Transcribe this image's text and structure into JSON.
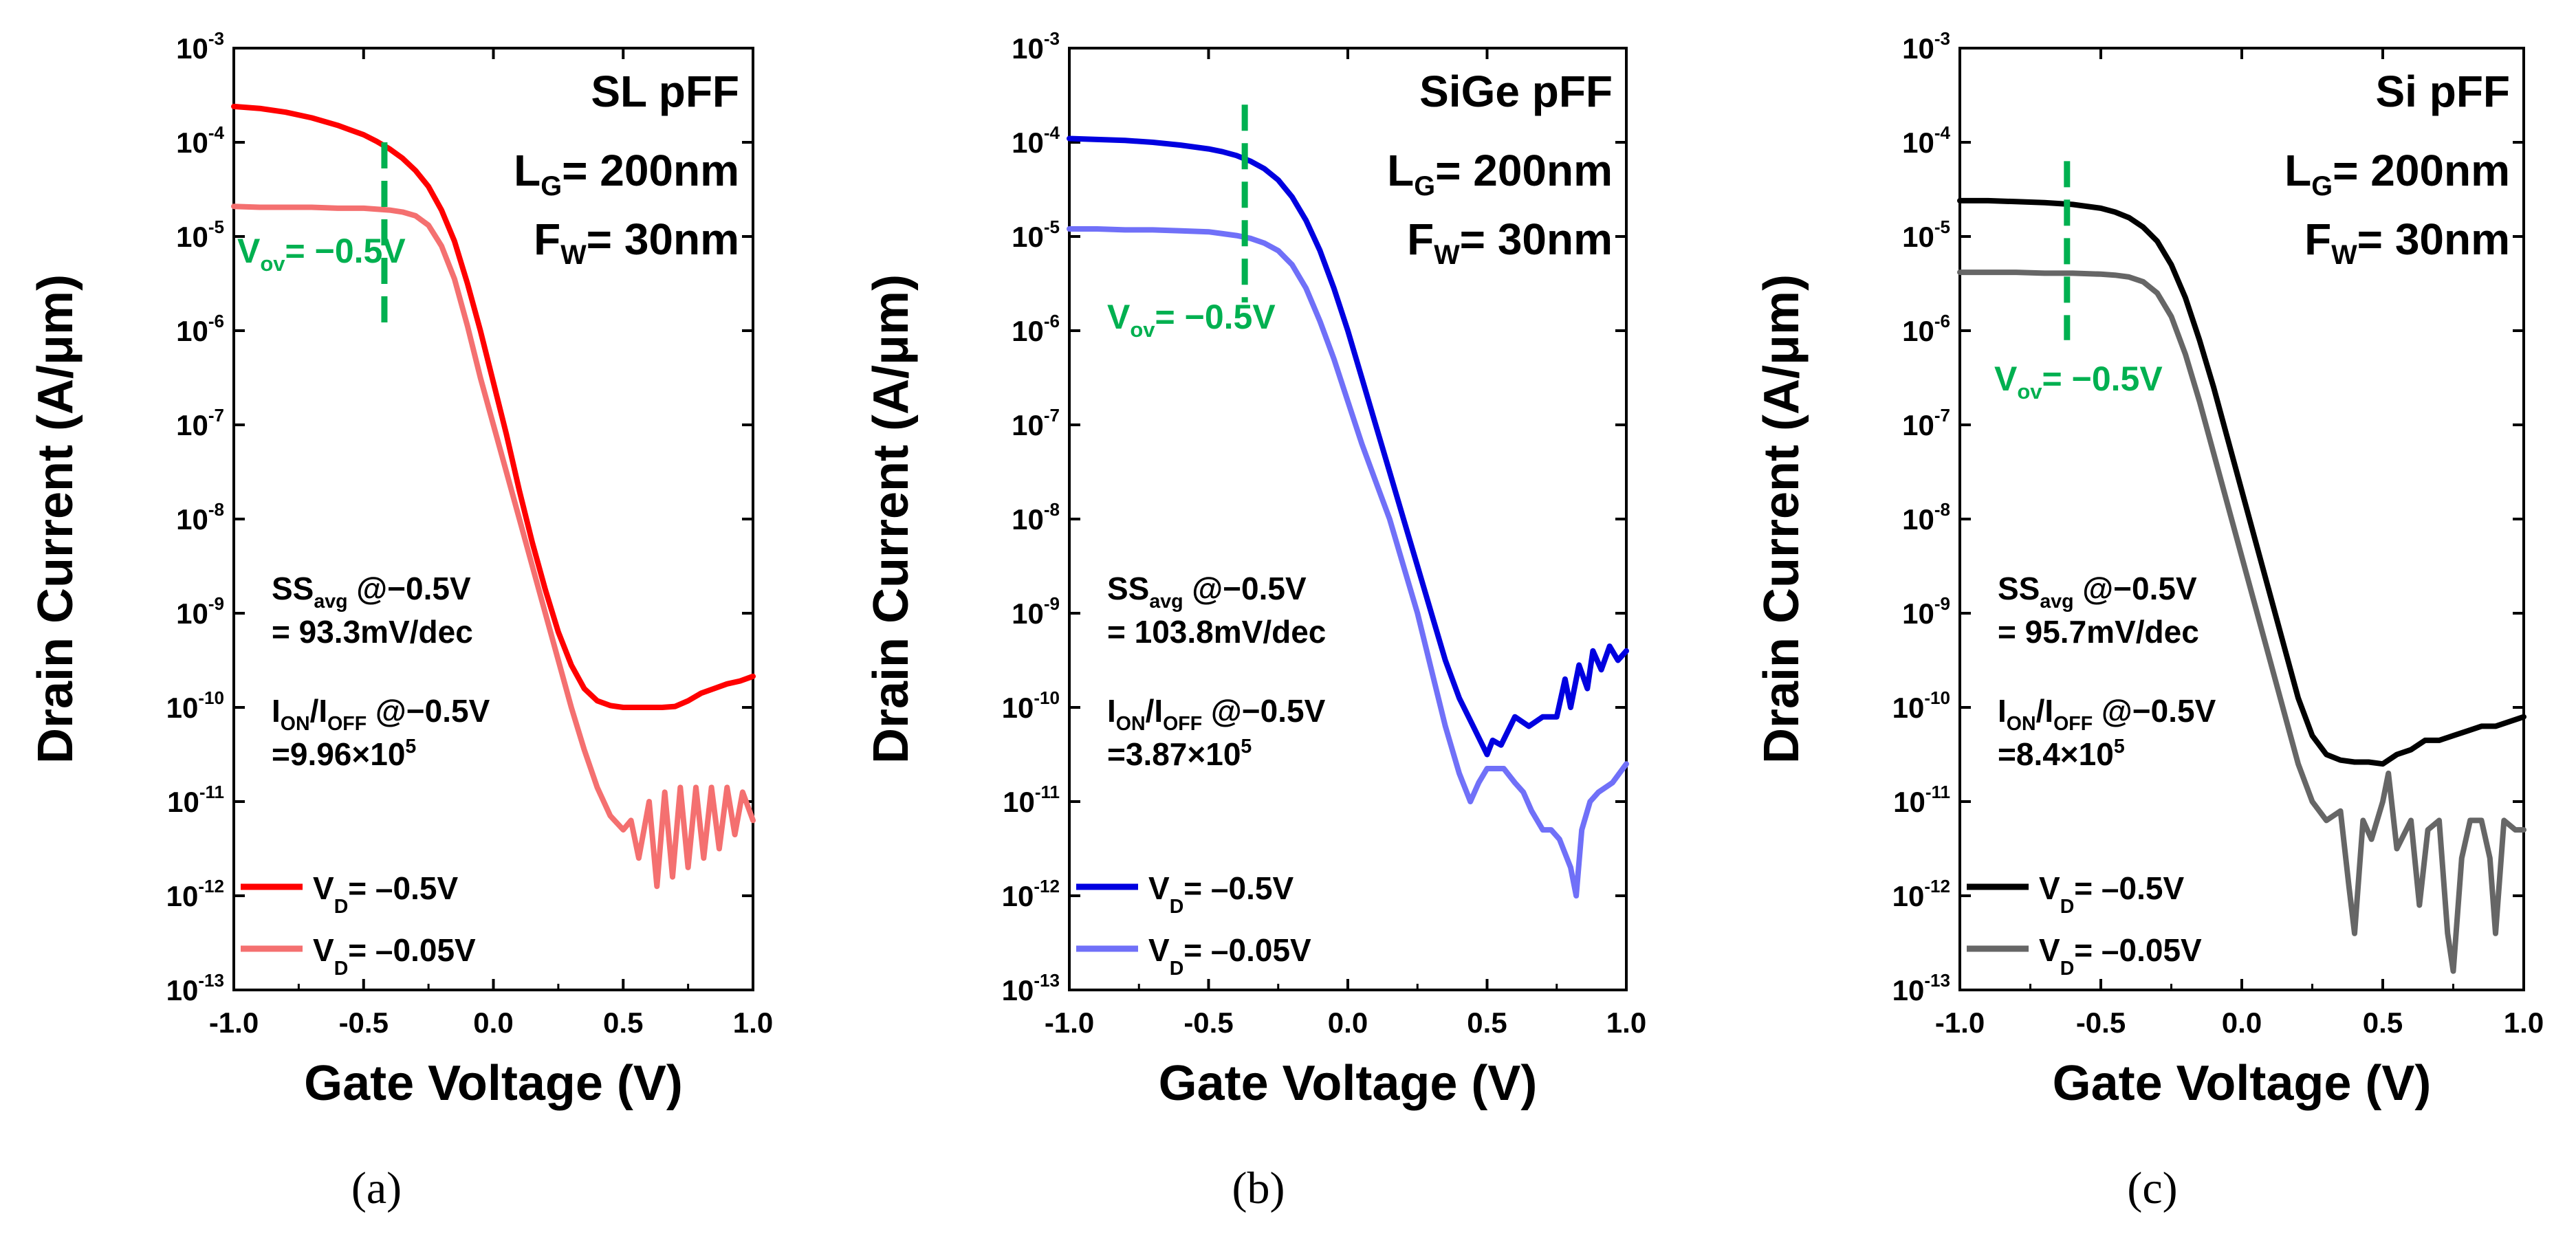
{
  "chart_data": [
    {
      "type": "line",
      "panel": "(a)",
      "title": "SL pFF",
      "lg_label": "L",
      "lg_sub": "G",
      "lg_value": "= 200nm",
      "fw_label": "F",
      "fw_sub": "W",
      "fw_value": "= 30nm",
      "xlabel": "Gate Voltage (V)",
      "ylabel": "Drain Current (A/μm)",
      "xlim": [
        -1.0,
        1.0
      ],
      "ylim_log10": [
        -13,
        -3
      ],
      "y_scale": "log",
      "x_ticks": [
        "-1.0",
        "-0.5",
        "0.0",
        "0.5",
        "1.0"
      ],
      "y_ticks": [
        {
          "base": "10",
          "exp": "-3"
        },
        {
          "base": "10",
          "exp": "-4"
        },
        {
          "base": "10",
          "exp": "-5"
        },
        {
          "base": "10",
          "exp": "-6"
        },
        {
          "base": "10",
          "exp": "-7"
        },
        {
          "base": "10",
          "exp": "-8"
        },
        {
          "base": "10",
          "exp": "-9"
        },
        {
          "base": "10",
          "exp": "-10"
        },
        {
          "base": "10",
          "exp": "-11"
        },
        {
          "base": "10",
          "exp": "-12"
        },
        {
          "base": "10",
          "exp": "-13"
        }
      ],
      "vov": {
        "x": -0.42,
        "y_log10": [
          -6.0,
          -4.0
        ],
        "label_main": "V",
        "label_sub": "ov",
        "label_value": "= −0.5V",
        "color": "#00b050"
      },
      "ss": {
        "label": "SS",
        "sub": "avg",
        "suffix": " @−0.5V",
        "value": "= 93.3mV/dec"
      },
      "ratio": {
        "label_a": "I",
        "sub_a": "ON",
        "slash": "/I",
        "sub_b": "OFF",
        "suffix": " @−0.5V",
        "value_prefix": "=9.96×10",
        "value_exp": "5"
      },
      "series": [
        {
          "name": "VD = −0.5V",
          "legend_main": "V",
          "legend_sub": "D",
          "legend_value": "= –0.5V",
          "color": "#ff0000",
          "x": [
            -1.0,
            -0.9,
            -0.8,
            -0.7,
            -0.6,
            -0.5,
            -0.45,
            -0.4,
            -0.35,
            -0.3,
            -0.25,
            -0.2,
            -0.15,
            -0.1,
            -0.05,
            0.0,
            0.05,
            0.1,
            0.15,
            0.2,
            0.25,
            0.3,
            0.35,
            0.4,
            0.45,
            0.5,
            0.55,
            0.6,
            0.65,
            0.7,
            0.75,
            0.8,
            0.85,
            0.9,
            0.95,
            1.0
          ],
          "y_log10": [
            -3.62,
            -3.64,
            -3.68,
            -3.74,
            -3.82,
            -3.92,
            -3.99,
            -4.07,
            -4.17,
            -4.3,
            -4.47,
            -4.72,
            -5.05,
            -5.5,
            -6.0,
            -6.55,
            -7.1,
            -7.7,
            -8.25,
            -8.75,
            -9.2,
            -9.55,
            -9.8,
            -9.93,
            -9.98,
            -10.0,
            -10.0,
            -10.0,
            -10.0,
            -9.99,
            -9.93,
            -9.85,
            -9.8,
            -9.75,
            -9.72,
            -9.67
          ]
        },
        {
          "name": "VD = −0.05V",
          "legend_main": "V",
          "legend_sub": "D",
          "legend_value": "= –0.05V",
          "color": "#f47070",
          "x": [
            -1.0,
            -0.9,
            -0.8,
            -0.7,
            -0.6,
            -0.5,
            -0.45,
            -0.4,
            -0.35,
            -0.3,
            -0.25,
            -0.2,
            -0.15,
            -0.1,
            -0.05,
            0.0,
            0.05,
            0.1,
            0.15,
            0.2,
            0.25,
            0.3,
            0.35,
            0.4,
            0.45,
            0.5,
            0.53,
            0.56,
            0.6,
            0.63,
            0.66,
            0.69,
            0.72,
            0.75,
            0.78,
            0.81,
            0.84,
            0.87,
            0.9,
            0.93,
            0.96,
            1.0
          ],
          "y_log10": [
            -4.68,
            -4.69,
            -4.69,
            -4.69,
            -4.7,
            -4.7,
            -4.71,
            -4.72,
            -4.74,
            -4.78,
            -4.88,
            -5.1,
            -5.45,
            -5.95,
            -6.5,
            -7.0,
            -7.5,
            -8.0,
            -8.5,
            -9.0,
            -9.5,
            -10.0,
            -10.45,
            -10.85,
            -11.15,
            -11.3,
            -11.2,
            -11.6,
            -11.0,
            -11.9,
            -10.9,
            -11.8,
            -10.85,
            -11.7,
            -10.85,
            -11.6,
            -10.85,
            -11.5,
            -10.85,
            -11.35,
            -10.9,
            -11.2
          ]
        }
      ]
    },
    {
      "type": "line",
      "panel": "(b)",
      "title": "SiGe pFF",
      "lg_label": "L",
      "lg_sub": "G",
      "lg_value": "= 200nm",
      "fw_label": "F",
      "fw_sub": "W",
      "fw_value": "= 30nm",
      "xlabel": "Gate Voltage (V)",
      "ylabel": "Drain Current (A/μm)",
      "xlim": [
        -1.0,
        1.0
      ],
      "ylim_log10": [
        -13,
        -3
      ],
      "y_scale": "log",
      "x_ticks": [
        "-1.0",
        "-0.5",
        "0.0",
        "0.5",
        "1.0"
      ],
      "y_ticks": [
        {
          "base": "10",
          "exp": "-3"
        },
        {
          "base": "10",
          "exp": "-4"
        },
        {
          "base": "10",
          "exp": "-5"
        },
        {
          "base": "10",
          "exp": "-6"
        },
        {
          "base": "10",
          "exp": "-7"
        },
        {
          "base": "10",
          "exp": "-8"
        },
        {
          "base": "10",
          "exp": "-9"
        },
        {
          "base": "10",
          "exp": "-10"
        },
        {
          "base": "10",
          "exp": "-11"
        },
        {
          "base": "10",
          "exp": "-12"
        },
        {
          "base": "10",
          "exp": "-13"
        }
      ],
      "vov": {
        "x": -0.37,
        "y_log10": [
          -5.7,
          -3.6
        ],
        "label_main": "V",
        "label_sub": "ov",
        "label_value": "= −0.5V",
        "color": "#00b050"
      },
      "ss": {
        "label": "SS",
        "sub": "avg",
        "suffix": " @−0.5V",
        "value": "= 103.8mV/dec"
      },
      "ratio": {
        "label_a": "I",
        "sub_a": "ON",
        "slash": "/I",
        "sub_b": "OFF",
        "suffix": " @−0.5V",
        "value_prefix": "=3.87×10",
        "value_exp": "5"
      },
      "series": [
        {
          "name": "VD = −0.5V",
          "legend_main": "V",
          "legend_sub": "D",
          "legend_value": "= –0.5V",
          "color": "#0000e0",
          "x": [
            -1.0,
            -0.9,
            -0.8,
            -0.7,
            -0.6,
            -0.5,
            -0.45,
            -0.4,
            -0.35,
            -0.3,
            -0.25,
            -0.2,
            -0.15,
            -0.1,
            -0.05,
            0.0,
            0.05,
            0.1,
            0.15,
            0.2,
            0.25,
            0.3,
            0.35,
            0.4,
            0.45,
            0.5,
            0.52,
            0.55,
            0.6,
            0.65,
            0.7,
            0.75,
            0.78,
            0.8,
            0.83,
            0.86,
            0.88,
            0.91,
            0.94,
            0.97,
            1.0
          ],
          "y_log10": [
            -3.96,
            -3.97,
            -3.98,
            -4.0,
            -4.03,
            -4.07,
            -4.1,
            -4.14,
            -4.2,
            -4.28,
            -4.4,
            -4.58,
            -4.83,
            -5.15,
            -5.55,
            -6.0,
            -6.5,
            -7.0,
            -7.5,
            -8.0,
            -8.5,
            -9.0,
            -9.5,
            -9.9,
            -10.2,
            -10.5,
            -10.35,
            -10.4,
            -10.1,
            -10.2,
            -10.1,
            -10.1,
            -9.7,
            -10.0,
            -9.55,
            -9.8,
            -9.4,
            -9.6,
            -9.35,
            -9.5,
            -9.4
          ]
        },
        {
          "name": "VD = −0.05V",
          "legend_main": "V",
          "legend_sub": "D",
          "legend_value": "= –0.05V",
          "color": "#7070f8",
          "x": [
            -1.0,
            -0.9,
            -0.8,
            -0.7,
            -0.6,
            -0.5,
            -0.45,
            -0.4,
            -0.35,
            -0.3,
            -0.25,
            -0.2,
            -0.15,
            -0.1,
            -0.05,
            0.0,
            0.05,
            0.1,
            0.15,
            0.2,
            0.25,
            0.3,
            0.35,
            0.4,
            0.44,
            0.47,
            0.5,
            0.53,
            0.56,
            0.6,
            0.63,
            0.66,
            0.7,
            0.73,
            0.76,
            0.8,
            0.82,
            0.84,
            0.87,
            0.9,
            0.95,
            1.0
          ],
          "y_log10": [
            -4.92,
            -4.92,
            -4.93,
            -4.93,
            -4.94,
            -4.95,
            -4.97,
            -4.99,
            -5.02,
            -5.07,
            -5.15,
            -5.3,
            -5.55,
            -5.9,
            -6.3,
            -6.75,
            -7.2,
            -7.6,
            -8.0,
            -8.5,
            -9.0,
            -9.6,
            -10.2,
            -10.7,
            -11.0,
            -10.8,
            -10.65,
            -10.65,
            -10.65,
            -10.8,
            -10.9,
            -11.1,
            -11.3,
            -11.3,
            -11.4,
            -11.7,
            -12.0,
            -11.3,
            -11.0,
            -10.9,
            -10.8,
            -10.6
          ]
        }
      ]
    },
    {
      "type": "line",
      "panel": "(c)",
      "title": "Si pFF",
      "lg_label": "L",
      "lg_sub": "G",
      "lg_value": "= 200nm",
      "fw_label": "F",
      "fw_sub": "W",
      "fw_value": "= 30nm",
      "xlabel": "Gate Voltage (V)",
      "ylabel": "Drain Current (A/μm)",
      "xlim": [
        -1.0,
        1.0
      ],
      "ylim_log10": [
        -13,
        -3
      ],
      "y_scale": "log",
      "x_ticks": [
        "-1.0",
        "-0.5",
        "0.0",
        "0.5",
        "1.0"
      ],
      "y_ticks": [
        {
          "base": "10",
          "exp": "-3"
        },
        {
          "base": "10",
          "exp": "-4"
        },
        {
          "base": "10",
          "exp": "-5"
        },
        {
          "base": "10",
          "exp": "-6"
        },
        {
          "base": "10",
          "exp": "-7"
        },
        {
          "base": "10",
          "exp": "-8"
        },
        {
          "base": "10",
          "exp": "-9"
        },
        {
          "base": "10",
          "exp": "-10"
        },
        {
          "base": "10",
          "exp": "-11"
        },
        {
          "base": "10",
          "exp": "-12"
        },
        {
          "base": "10",
          "exp": "-13"
        }
      ],
      "vov": {
        "x": -0.62,
        "y_log10": [
          -6.1,
          -4.2
        ],
        "label_main": "V",
        "label_sub": "ov",
        "label_value": "= −0.5V",
        "color": "#00b050"
      },
      "ss": {
        "label": "SS",
        "sub": "avg",
        "suffix": " @−0.5V",
        "value": "= 95.7mV/dec"
      },
      "ratio": {
        "label_a": "I",
        "sub_a": "ON",
        "slash": "/I",
        "sub_b": "OFF",
        "suffix": " @−0.5V",
        "value_prefix": "=8.4×10",
        "value_exp": "5"
      },
      "series": [
        {
          "name": "VD = −0.5V",
          "legend_main": "V",
          "legend_sub": "D",
          "legend_value": "= –0.5V",
          "color": "#000000",
          "x": [
            -1.0,
            -0.9,
            -0.8,
            -0.7,
            -0.6,
            -0.5,
            -0.45,
            -0.4,
            -0.35,
            -0.3,
            -0.25,
            -0.2,
            -0.15,
            -0.1,
            -0.05,
            0.0,
            0.05,
            0.1,
            0.15,
            0.2,
            0.25,
            0.3,
            0.35,
            0.4,
            0.45,
            0.5,
            0.55,
            0.6,
            0.65,
            0.7,
            0.75,
            0.8,
            0.85,
            0.9,
            0.95,
            1.0
          ],
          "y_log10": [
            -4.62,
            -4.62,
            -4.63,
            -4.64,
            -4.66,
            -4.7,
            -4.74,
            -4.8,
            -4.9,
            -5.05,
            -5.3,
            -5.65,
            -6.1,
            -6.6,
            -7.15,
            -7.7,
            -8.25,
            -8.8,
            -9.35,
            -9.9,
            -10.3,
            -10.5,
            -10.56,
            -10.58,
            -10.58,
            -10.6,
            -10.5,
            -10.45,
            -10.35,
            -10.35,
            -10.3,
            -10.25,
            -10.2,
            -10.2,
            -10.15,
            -10.1
          ]
        },
        {
          "name": "VD = −0.05V",
          "legend_main": "V",
          "legend_sub": "D",
          "legend_value": "= –0.05V",
          "color": "#666666",
          "x": [
            -1.0,
            -0.9,
            -0.8,
            -0.7,
            -0.6,
            -0.5,
            -0.45,
            -0.4,
            -0.35,
            -0.3,
            -0.25,
            -0.2,
            -0.15,
            -0.1,
            -0.05,
            0.0,
            0.05,
            0.1,
            0.15,
            0.2,
            0.25,
            0.3,
            0.35,
            0.38,
            0.4,
            0.43,
            0.46,
            0.5,
            0.52,
            0.55,
            0.6,
            0.63,
            0.66,
            0.7,
            0.73,
            0.75,
            0.78,
            0.81,
            0.85,
            0.88,
            0.9,
            0.93,
            0.97,
            1.0
          ],
          "y_log10": [
            -5.38,
            -5.38,
            -5.38,
            -5.39,
            -5.39,
            -5.4,
            -5.41,
            -5.43,
            -5.48,
            -5.6,
            -5.85,
            -6.25,
            -6.75,
            -7.3,
            -7.85,
            -8.4,
            -8.95,
            -9.5,
            -10.05,
            -10.6,
            -11.0,
            -11.2,
            -11.1,
            -11.9,
            -12.4,
            -11.2,
            -11.4,
            -11.0,
            -10.7,
            -11.5,
            -11.2,
            -12.1,
            -11.3,
            -11.2,
            -12.4,
            -12.8,
            -11.6,
            -11.2,
            -11.2,
            -11.6,
            -12.4,
            -11.2,
            -11.3,
            -11.3
          ]
        }
      ]
    }
  ]
}
